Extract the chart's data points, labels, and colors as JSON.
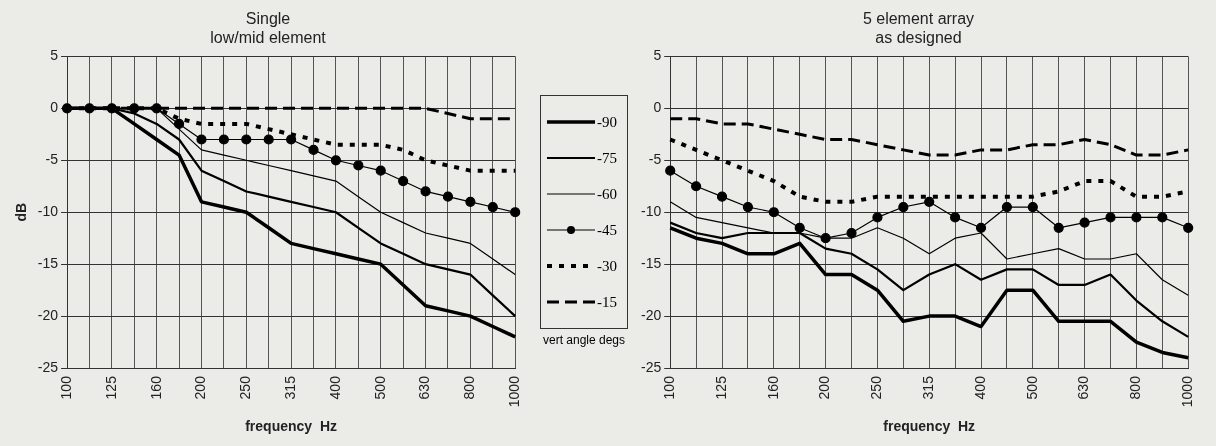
{
  "chart_data": [
    {
      "type": "line",
      "title": "Single",
      "subtitle": "low/mid element",
      "xlabel": "frequency  Hz",
      "ylabel": "dB",
      "legend": "right",
      "legend_title": "vert angle degs",
      "grid": true,
      "categories": [
        "100",
        null,
        "125",
        null,
        "160",
        null,
        "200",
        null,
        "250",
        null,
        "315",
        null,
        "400",
        null,
        "500",
        null,
        "630",
        null,
        "800",
        null,
        "1000"
      ],
      "ylim": [
        -25,
        5
      ],
      "yticks": [
        -25,
        -20,
        -15,
        -10,
        -5,
        0,
        5
      ],
      "series": [
        {
          "name": "-90",
          "color": "#000000",
          "line_style": "solid",
          "marker": "none",
          "values": [
            0,
            0,
            0,
            -1.5,
            -3,
            -4.5,
            -9,
            -9.5,
            -10,
            -11.5,
            -13,
            -13.5,
            -14,
            -14.5,
            -15,
            -17,
            -19,
            -19.5,
            -20,
            -21,
            -22
          ]
        },
        {
          "name": "-75",
          "color": "#000000",
          "line_style": "solid",
          "marker": "none",
          "values": [
            0,
            0,
            0,
            -0.5,
            -1.5,
            -3,
            -6,
            -7,
            -8,
            -8.5,
            -9,
            -9.5,
            -10,
            -11.5,
            -13,
            -14,
            -15,
            -15.5,
            -16,
            -18,
            -20
          ]
        },
        {
          "name": "-60",
          "color": "#000000",
          "line_style": "solid",
          "marker": "none",
          "values": [
            0,
            0,
            0,
            0,
            0,
            -2,
            -4,
            -4.5,
            -5,
            -5.5,
            -6,
            -6.5,
            -7,
            -8.5,
            -10,
            -11,
            -12,
            -12.5,
            -13,
            -14.5,
            -16
          ]
        },
        {
          "name": "-45",
          "color": "#000000",
          "line_style": "solid",
          "marker": "circle",
          "values": [
            0,
            0,
            0,
            0,
            0,
            -1.5,
            -3,
            -3,
            -3,
            -3,
            -3,
            -4,
            -5,
            -5.5,
            -6,
            -7,
            -8,
            -8.5,
            -9,
            -9.5,
            -10
          ]
        },
        {
          "name": "-30",
          "color": "#000000",
          "line_style": "dotted",
          "marker": "none",
          "values": [
            0,
            0,
            0,
            0,
            0,
            -1,
            -1.5,
            -1.5,
            -1.5,
            -2,
            -2.5,
            -3,
            -3.5,
            -3.5,
            -3.5,
            -4,
            -5,
            -5.5,
            -6,
            -6,
            -6
          ]
        },
        {
          "name": "-15",
          "color": "#000000",
          "line_style": "dashed",
          "marker": "none",
          "values": [
            0,
            0,
            0,
            0,
            0,
            0,
            0,
            0,
            0,
            0,
            0,
            0,
            0,
            0,
            0,
            0,
            0,
            -0.5,
            -1,
            -1,
            -1
          ]
        }
      ]
    },
    {
      "type": "line",
      "title": "5 element array",
      "subtitle": "as designed",
      "xlabel": "frequency  Hz",
      "grid": true,
      "categories": [
        "100",
        null,
        "125",
        null,
        "160",
        null,
        "200",
        null,
        "250",
        null,
        "315",
        null,
        "400",
        null,
        "500",
        null,
        "630",
        null,
        "800",
        null,
        "1000"
      ],
      "ylim": [
        -25,
        5
      ],
      "yticks": [
        -25,
        -20,
        -15,
        -10,
        -5,
        0,
        5
      ],
      "series": [
        {
          "color": "#000000",
          "line_style": "solid",
          "marker": "none",
          "values": [
            -11.5,
            -12.5,
            -13,
            -14,
            -14,
            -13,
            -16,
            -16,
            -17.5,
            -20.5,
            -20,
            -20,
            -21,
            -17.5,
            -17.5,
            -20.5,
            -20.5,
            -20.5,
            -22.5,
            -23.5,
            -24
          ]
        },
        {
          "color": "#000000",
          "line_style": "solid",
          "marker": "none",
          "values": [
            -11,
            -12,
            -12.5,
            -12,
            -12,
            -12,
            -13.5,
            -14,
            -15.5,
            -17.5,
            -16,
            -15,
            -16.5,
            -15.5,
            -15.5,
            -17,
            -17,
            -16,
            -18.5,
            -20.5,
            -22
          ]
        },
        {
          "color": "#000000",
          "line_style": "solid",
          "marker": "none",
          "values": [
            -9,
            -10.5,
            -11,
            -11.5,
            -12,
            -12,
            -12.5,
            -12.5,
            -11.5,
            -12.5,
            -14,
            -12.5,
            -12,
            -14.5,
            -14,
            -13.5,
            -14.5,
            -14.5,
            -14,
            -16.5,
            -18
          ]
        },
        {
          "color": "#000000",
          "line_style": "solid",
          "marker": "circle",
          "values": [
            -6,
            -7.5,
            -8.5,
            -9.5,
            -10,
            -11.5,
            -12.5,
            -12,
            -10.5,
            -9.5,
            -9,
            -10.5,
            -11.5,
            -9.5,
            -9.5,
            -11.5,
            -11,
            -10.5,
            -10.5,
            -10.5,
            -11.5
          ]
        },
        {
          "color": "#000000",
          "line_style": "dotted",
          "marker": "none",
          "values": [
            -3,
            -4,
            -5,
            -6,
            -7,
            -8.5,
            -9,
            -9,
            -8.5,
            -8.5,
            -8.5,
            -8.5,
            -8.5,
            -8.5,
            -8.5,
            -8,
            -7,
            -7,
            -8.5,
            -8.5,
            -8
          ]
        },
        {
          "color": "#000000",
          "line_style": "dashed",
          "marker": "none",
          "values": [
            -1,
            -1,
            -1.5,
            -1.5,
            -2,
            -2.5,
            -3,
            -3,
            -3.5,
            -4,
            -4.5,
            -4.5,
            -4,
            -4,
            -3.5,
            -3.5,
            -3,
            -3.5,
            -4.5,
            -4.5,
            -4
          ]
        }
      ]
    }
  ]
}
